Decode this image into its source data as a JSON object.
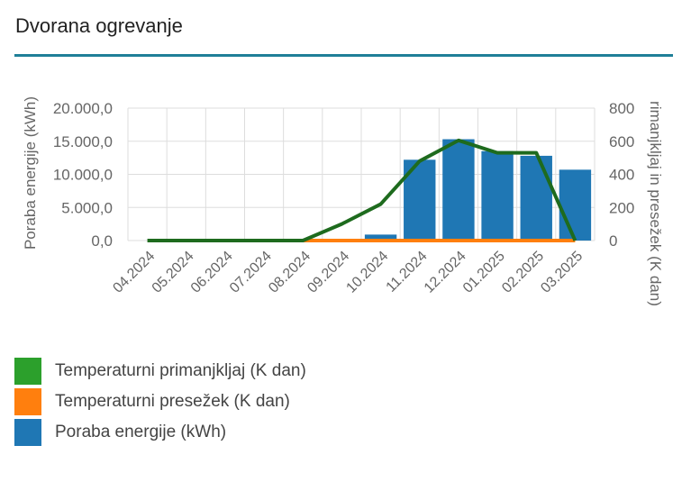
{
  "page": {
    "title": "Dvorana ogrevanje"
  },
  "colors": {
    "accent_rule": "#1f7f98",
    "grid": "#dddddd",
    "axis_text": "#666666"
  },
  "chart_data": {
    "type": "bar",
    "categories": [
      "04.2024",
      "05.2024",
      "06.2024",
      "07.2024",
      "08.2024",
      "09.2024",
      "10.2024",
      "11.2024",
      "12.2024",
      "01.2025",
      "02.2025",
      "03.2025"
    ],
    "ylabel_left": "Poraba energije (kWh)",
    "ylabel_right": "rimanjkljaj in presežek (K dan)",
    "ylim_left": [
      0,
      20000
    ],
    "ylim_right": [
      0,
      800
    ],
    "yticks_left": [
      "20.000,0",
      "15.000,0",
      "10.000,0",
      "5.000,0",
      "0,0"
    ],
    "yticks_right": [
      "800",
      "600",
      "400",
      "200",
      "0"
    ],
    "grid": true,
    "legend_position": "bottom",
    "series": [
      {
        "name": "Temperaturni primanjkljaj (K dan)",
        "type": "line",
        "axis": "right",
        "color": "#2ca02c",
        "line_color": "#1e6b1e",
        "values": [
          0,
          0,
          0,
          0,
          0,
          100,
          220,
          480,
          605,
          530,
          530,
          0
        ]
      },
      {
        "name": "Temperaturni presežek (K dan)",
        "type": "line",
        "axis": "right",
        "color": "#ff7f0e",
        "values": [
          null,
          null,
          null,
          null,
          0,
          0,
          0,
          0,
          0,
          0,
          0,
          0
        ]
      },
      {
        "name": "Poraba energije (kWh)",
        "type": "bar",
        "axis": "left",
        "color": "#1f77b4",
        "values": [
          0,
          0,
          0,
          0,
          0,
          0,
          900,
          12200,
          15300,
          13500,
          12800,
          10700
        ]
      }
    ]
  }
}
